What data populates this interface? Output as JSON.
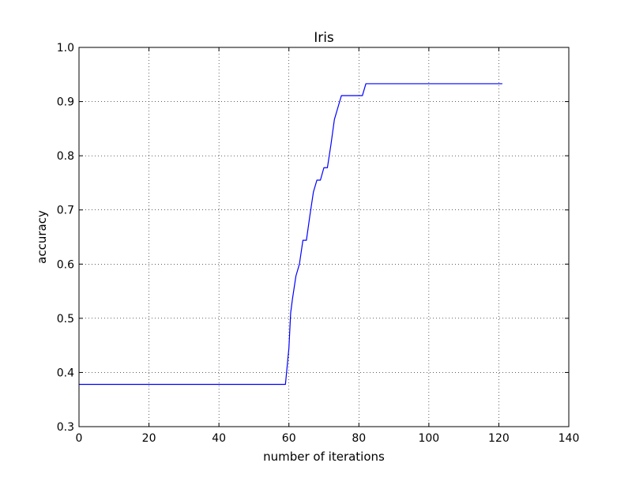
{
  "chart_data": {
    "type": "line",
    "title": "Iris",
    "xlabel": "number of iterations",
    "ylabel": "accuracy",
    "xlim": [
      0,
      140
    ],
    "ylim": [
      0.3,
      1.0
    ],
    "xticks": [
      "0",
      "20",
      "40",
      "60",
      "80",
      "100",
      "120",
      "140"
    ],
    "yticks": [
      "0.3",
      "0.4",
      "0.5",
      "0.6",
      "0.7",
      "0.8",
      "0.9",
      "1.0"
    ],
    "grid": true,
    "series": [
      {
        "color": "#0000ff",
        "points": [
          [
            0,
            0.378
          ],
          [
            59,
            0.378
          ],
          [
            60,
            0.445
          ],
          [
            60.5,
            0.51
          ],
          [
            61,
            0.535
          ],
          [
            62,
            0.578
          ],
          [
            63,
            0.6
          ],
          [
            64,
            0.644
          ],
          [
            65,
            0.644
          ],
          [
            66,
            0.69
          ],
          [
            67,
            0.733
          ],
          [
            68,
            0.755
          ],
          [
            69,
            0.755
          ],
          [
            70,
            0.778
          ],
          [
            71,
            0.778
          ],
          [
            72,
            0.82
          ],
          [
            73,
            0.867
          ],
          [
            74,
            0.889
          ],
          [
            75,
            0.911
          ],
          [
            81,
            0.911
          ],
          [
            82,
            0.933
          ],
          [
            121,
            0.933
          ]
        ]
      }
    ]
  }
}
